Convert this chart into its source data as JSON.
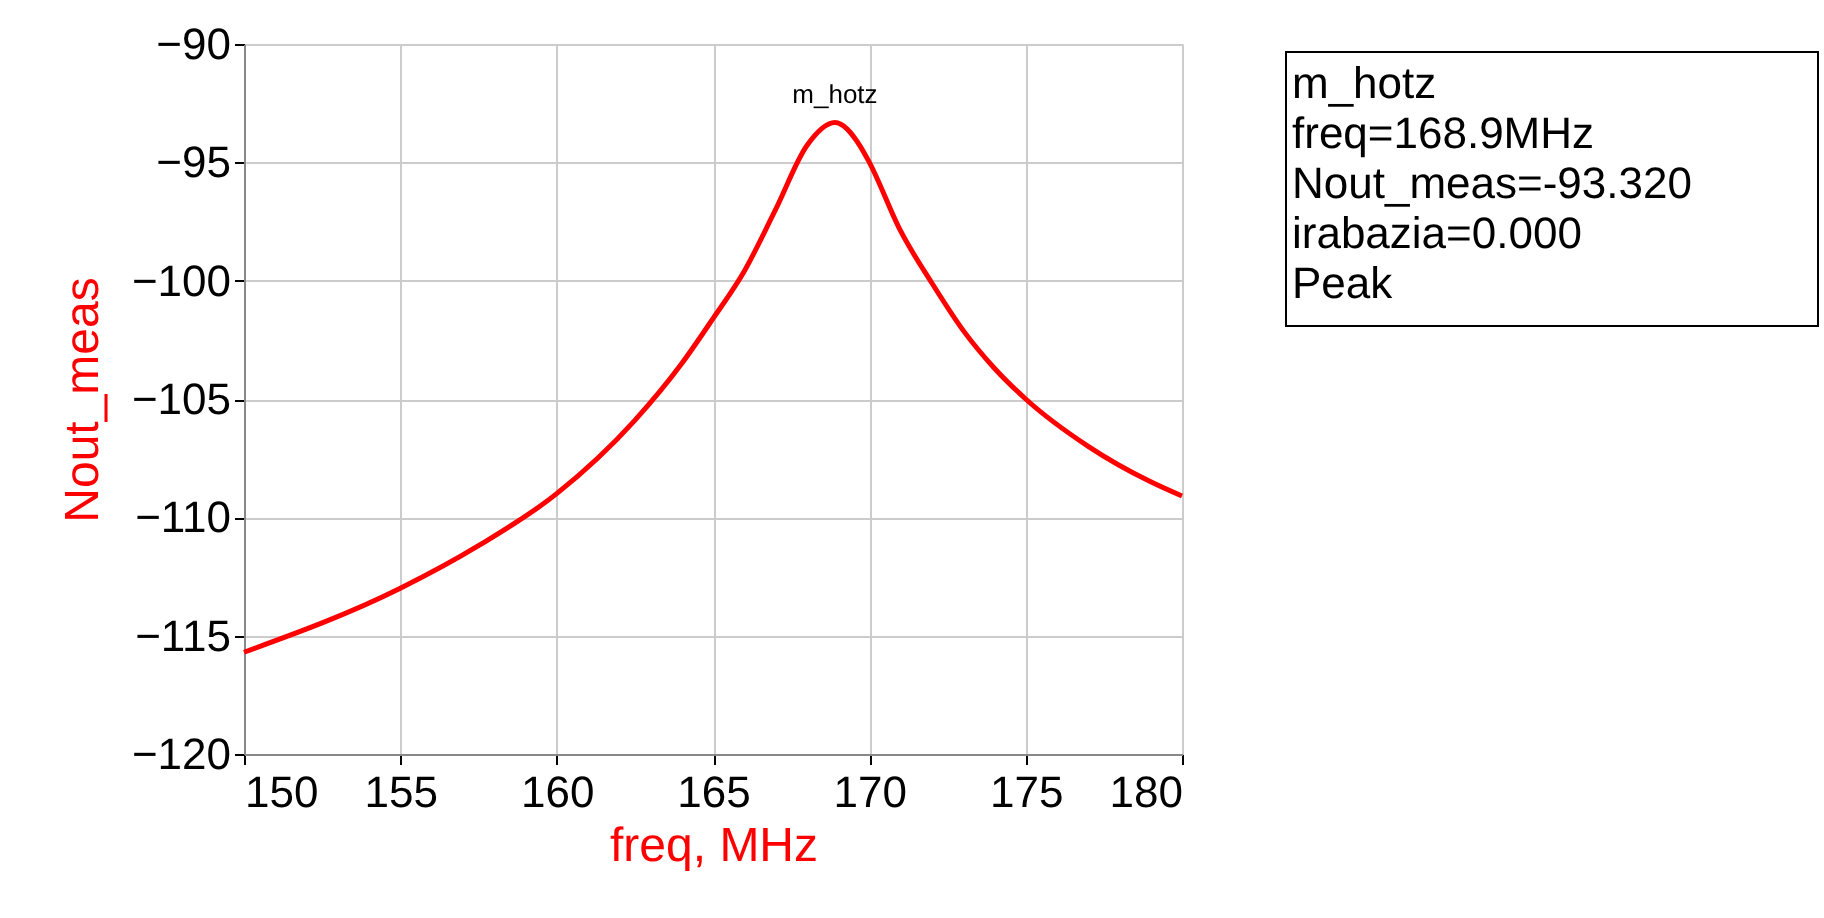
{
  "chart_data": {
    "type": "line",
    "xlabel": "freq, MHz",
    "ylabel": "Nout_meas",
    "x": [
      150,
      155,
      157.5,
      160,
      162.5,
      164,
      165,
      166,
      167,
      168,
      168.9,
      169.7,
      170,
      171,
      172,
      173,
      174,
      175,
      177,
      179,
      180
    ],
    "series": [
      {
        "color": "#ff0000",
        "values": [
          -115.7,
          -113.0,
          -111.2,
          -109.0,
          -105.9,
          -103.5,
          -101.6,
          -99.6,
          -97.0,
          -94.3,
          -93.32,
          -94.3,
          -95.0,
          -97.9,
          -100.1,
          -102.1,
          -103.7,
          -105.0,
          -107.0,
          -108.5,
          -109.1
        ]
      }
    ],
    "xlim": [
      150,
      180
    ],
    "xticks": [
      150,
      155,
      160,
      165,
      170,
      175,
      180
    ],
    "ylim": [
      -120,
      -90
    ],
    "yticks": [
      -120,
      -115,
      -110,
      -105,
      -100,
      -95,
      -90
    ],
    "grid": true,
    "marker": "none",
    "line_style": "solid",
    "annotations": [
      {
        "text": "m_hotz",
        "x": 168.9,
        "y": -93.32
      },
      "m_hotz",
      "freq=168.9MHz",
      "Nout_meas=-93.320",
      "irabazia=0.000",
      "Peak"
    ]
  }
}
